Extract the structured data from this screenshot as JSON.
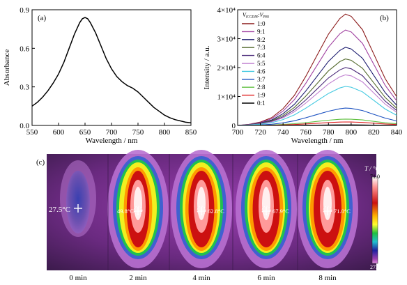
{
  "chart_data": [
    {
      "type": "line",
      "panel_label": "(a)",
      "xlabel": "Wavelength / nm",
      "ylabel": "Absorbance",
      "xlim": [
        550,
        850
      ],
      "ylim": [
        0,
        0.9
      ],
      "xticks": [
        550,
        600,
        650,
        700,
        750,
        800,
        850
      ],
      "yticks": [
        0.0,
        0.3,
        0.6,
        0.9
      ],
      "series": [
        {
          "x": [
            550,
            560,
            570,
            580,
            590,
            600,
            610,
            620,
            630,
            640,
            645,
            650,
            655,
            660,
            670,
            680,
            690,
            700,
            710,
            720,
            730,
            740,
            750,
            760,
            770,
            780,
            790,
            800,
            810,
            820,
            830,
            840,
            850
          ],
          "y": [
            0.15,
            0.18,
            0.22,
            0.27,
            0.33,
            0.4,
            0.49,
            0.6,
            0.71,
            0.8,
            0.83,
            0.84,
            0.83,
            0.8,
            0.72,
            0.62,
            0.52,
            0.44,
            0.38,
            0.34,
            0.31,
            0.29,
            0.26,
            0.22,
            0.18,
            0.14,
            0.11,
            0.08,
            0.06,
            0.045,
            0.035,
            0.025,
            0.02
          ]
        }
      ]
    },
    {
      "type": "line",
      "panel_label": "(b)",
      "xlabel": "Wavelength / nm",
      "ylabel": "Intensity / a.u.",
      "xlim": [
        700,
        840
      ],
      "ylim": [
        0,
        40000
      ],
      "xticks": [
        700,
        720,
        740,
        760,
        780,
        800,
        820,
        840
      ],
      "yticks": [
        0,
        10000,
        20000,
        30000,
        40000
      ],
      "ytick_labels": [
        "0",
        "1×10⁴",
        "2×10⁴",
        "3×10⁴",
        "4×10⁴"
      ],
      "legend_title_parts": [
        "V",
        "ICGDIR",
        ":V",
        "PBS"
      ],
      "legend_position": "top-left",
      "series": [
        {
          "name": "1:0",
          "color": "#8b1a1a",
          "peak": 38500
        },
        {
          "name": "9:1",
          "color": "#a040a0",
          "peak": 33000
        },
        {
          "name": "8:2",
          "color": "#1a1a6e",
          "peak": 27000
        },
        {
          "name": "7:3",
          "color": "#556b2f",
          "peak": 23000
        },
        {
          "name": "6:4",
          "color": "#4b2a7a",
          "peak": 20000
        },
        {
          "name": "5:5",
          "color": "#c080d0",
          "peak": 17500
        },
        {
          "name": "4:6",
          "color": "#40c8e0",
          "peak": 13500
        },
        {
          "name": "3:7",
          "color": "#1a50c0",
          "peak": 6000
        },
        {
          "name": "2:8",
          "color": "#60c040",
          "peak": 2200
        },
        {
          "name": "1:9",
          "color": "#e02020",
          "peak": 1200
        },
        {
          "name": "0:1",
          "color": "#000000",
          "peak": 200
        }
      ],
      "x": [
        700,
        710,
        720,
        730,
        740,
        750,
        760,
        770,
        780,
        790,
        795,
        800,
        810,
        820,
        830,
        840
      ],
      "shape": [
        0.0,
        0.01,
        0.03,
        0.07,
        0.15,
        0.27,
        0.44,
        0.63,
        0.82,
        0.96,
        1.0,
        0.98,
        0.86,
        0.64,
        0.42,
        0.26
      ]
    }
  ],
  "thermal": {
    "panel_label": "(c)",
    "legend_title": "T / °C",
    "scale_max": "71.0",
    "scale_min": "27.4",
    "frames": [
      {
        "time": "0 min",
        "temp": "27.5°C"
      },
      {
        "time": "2 min",
        "temp": "49.8°C"
      },
      {
        "time": "4 min",
        "temp": "62.8°C"
      },
      {
        "time": "6 min",
        "temp": "67.9°C"
      },
      {
        "time": "8 min",
        "temp": "71.0°C"
      }
    ]
  }
}
